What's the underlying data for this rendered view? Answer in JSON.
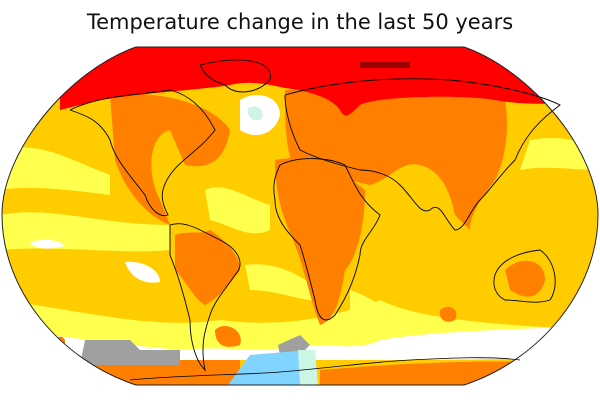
{
  "title": "Temperature change in the last 50 years",
  "map": {
    "projection": "Robinson",
    "colors": {
      "strong_warming": "#ff0000",
      "warming": "#ff8000",
      "moderate_warming": "#ffcc00",
      "slight_warming": "#ffff4d",
      "neutral": "#ffffff",
      "slight_cooling": "#ccf5e6",
      "cooling": "#80d4ff",
      "no_data": "#a0a0a0",
      "extreme_warming": "#990000",
      "coastline": "#000000"
    }
  }
}
